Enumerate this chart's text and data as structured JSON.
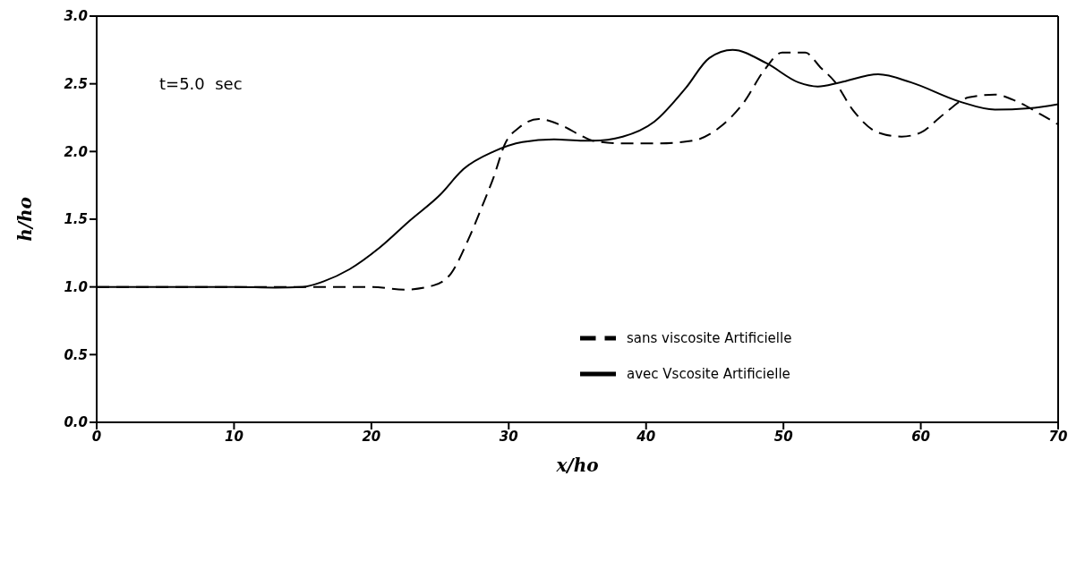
{
  "chart_data": {
    "type": "line",
    "xlabel": "x/ho",
    "ylabel": "h/ho",
    "annotations": [
      "t=5.0  sec"
    ],
    "xlim": [
      0,
      70
    ],
    "xticks": [
      0,
      10,
      20,
      30,
      40,
      50,
      60,
      70
    ],
    "ylim": [
      0,
      3
    ],
    "yticks": [
      {
        "value": 0,
        "label": "0.0"
      },
      {
        "value": 0.5,
        "label": "0.5"
      },
      {
        "value": 1,
        "label": "1.0"
      },
      {
        "value": 1.5,
        "label": "1.5"
      },
      {
        "value": 2,
        "label": "2.0"
      },
      {
        "value": 2.5,
        "label": "2.5"
      },
      {
        "value": 3,
        "label": "3.0"
      }
    ],
    "grid": false,
    "legend": "right",
    "marker": "none",
    "series": [
      {
        "name": "sans viscosite Artificielle",
        "color": "#000000",
        "line_style": "dashed",
        "x": [
          0,
          10,
          15,
          20,
          22.4,
          24.5,
          25.8,
          27.1,
          28,
          28.9,
          29.7,
          30.8,
          32.2,
          33.9,
          35.4,
          36.1,
          38.3,
          40.8,
          43.4,
          45.5,
          47.1,
          48.6,
          49.9,
          51.6,
          52.7,
          53.7,
          55.1,
          56.9,
          58.6,
          60,
          61.6,
          63.5,
          65.4,
          67,
          68.8,
          70
        ],
        "values": [
          1.0,
          1.0,
          1.0,
          1.0,
          0.98,
          1.01,
          1.1,
          1.36,
          1.58,
          1.81,
          2.05,
          2.18,
          2.24,
          2.19,
          2.11,
          2.08,
          2.06,
          2.06,
          2.08,
          2.19,
          2.36,
          2.6,
          2.73,
          2.73,
          2.62,
          2.52,
          2.3,
          2.14,
          2.11,
          2.14,
          2.27,
          2.4,
          2.42,
          2.37,
          2.27,
          2.2
        ]
      },
      {
        "name": "avec Vscosite Artificielle",
        "color": "#000000",
        "line_style": "solid",
        "x": [
          0,
          10,
          13,
          15,
          16.5,
          18.4,
          20.6,
          22.8,
          25,
          26.7,
          28.9,
          31,
          33.3,
          35.4,
          36.1,
          38.3,
          40.6,
          42.9,
          44.6,
          46.3,
          48.8,
          51.1,
          52.5,
          54.1,
          56.9,
          59.3,
          62.8,
          65.4,
          67.9,
          70
        ],
        "values": [
          1.0,
          1.0,
          0.995,
          1.0,
          1.04,
          1.13,
          1.29,
          1.49,
          1.68,
          1.87,
          2.0,
          2.07,
          2.09,
          2.08,
          2.08,
          2.11,
          2.22,
          2.47,
          2.69,
          2.75,
          2.65,
          2.51,
          2.48,
          2.51,
          2.57,
          2.51,
          2.37,
          2.31,
          2.32,
          2.35
        ]
      }
    ]
  }
}
